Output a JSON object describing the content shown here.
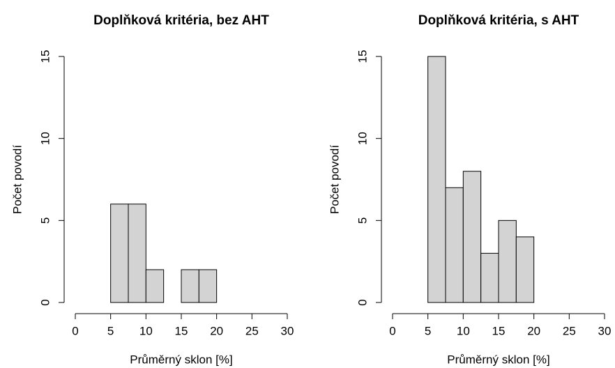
{
  "chart_data": [
    {
      "type": "histogram",
      "title": "Doplňková kritéria, bez AHT",
      "x_label": "Průměrný sklon [%]",
      "y_label": "Počet povodí",
      "bins": [
        0,
        2.5,
        5,
        7.5,
        10,
        12.5,
        15,
        17.5,
        20,
        22.5,
        25,
        27.5,
        30
      ],
      "counts": [
        0,
        0,
        6,
        6,
        2,
        0,
        2,
        2,
        0,
        0,
        0,
        0
      ],
      "color": "#d3d3d3",
      "xlim": [
        0,
        30
      ],
      "xticks": [
        0,
        5,
        10,
        15,
        20,
        25,
        30
      ],
      "ylim": [
        0,
        15
      ],
      "yticks": [
        0,
        5,
        10,
        15
      ]
    },
    {
      "type": "histogram",
      "title": "Doplňková kritéria, s AHT",
      "x_label": "Průměrný sklon [%]",
      "y_label": "Počet povodí",
      "bins": [
        0,
        2.5,
        5,
        7.5,
        10,
        12.5,
        15,
        17.5,
        20,
        22.5,
        25,
        27.5,
        30
      ],
      "counts": [
        0,
        0,
        15,
        7,
        8,
        3,
        5,
        4,
        0,
        0,
        0,
        0
      ],
      "color": "#d3d3d3",
      "xlim": [
        0,
        30
      ],
      "xticks": [
        0,
        5,
        10,
        15,
        20,
        25,
        30
      ],
      "ylim": [
        0,
        15
      ],
      "yticks": [
        0,
        5,
        10,
        15
      ]
    }
  ]
}
